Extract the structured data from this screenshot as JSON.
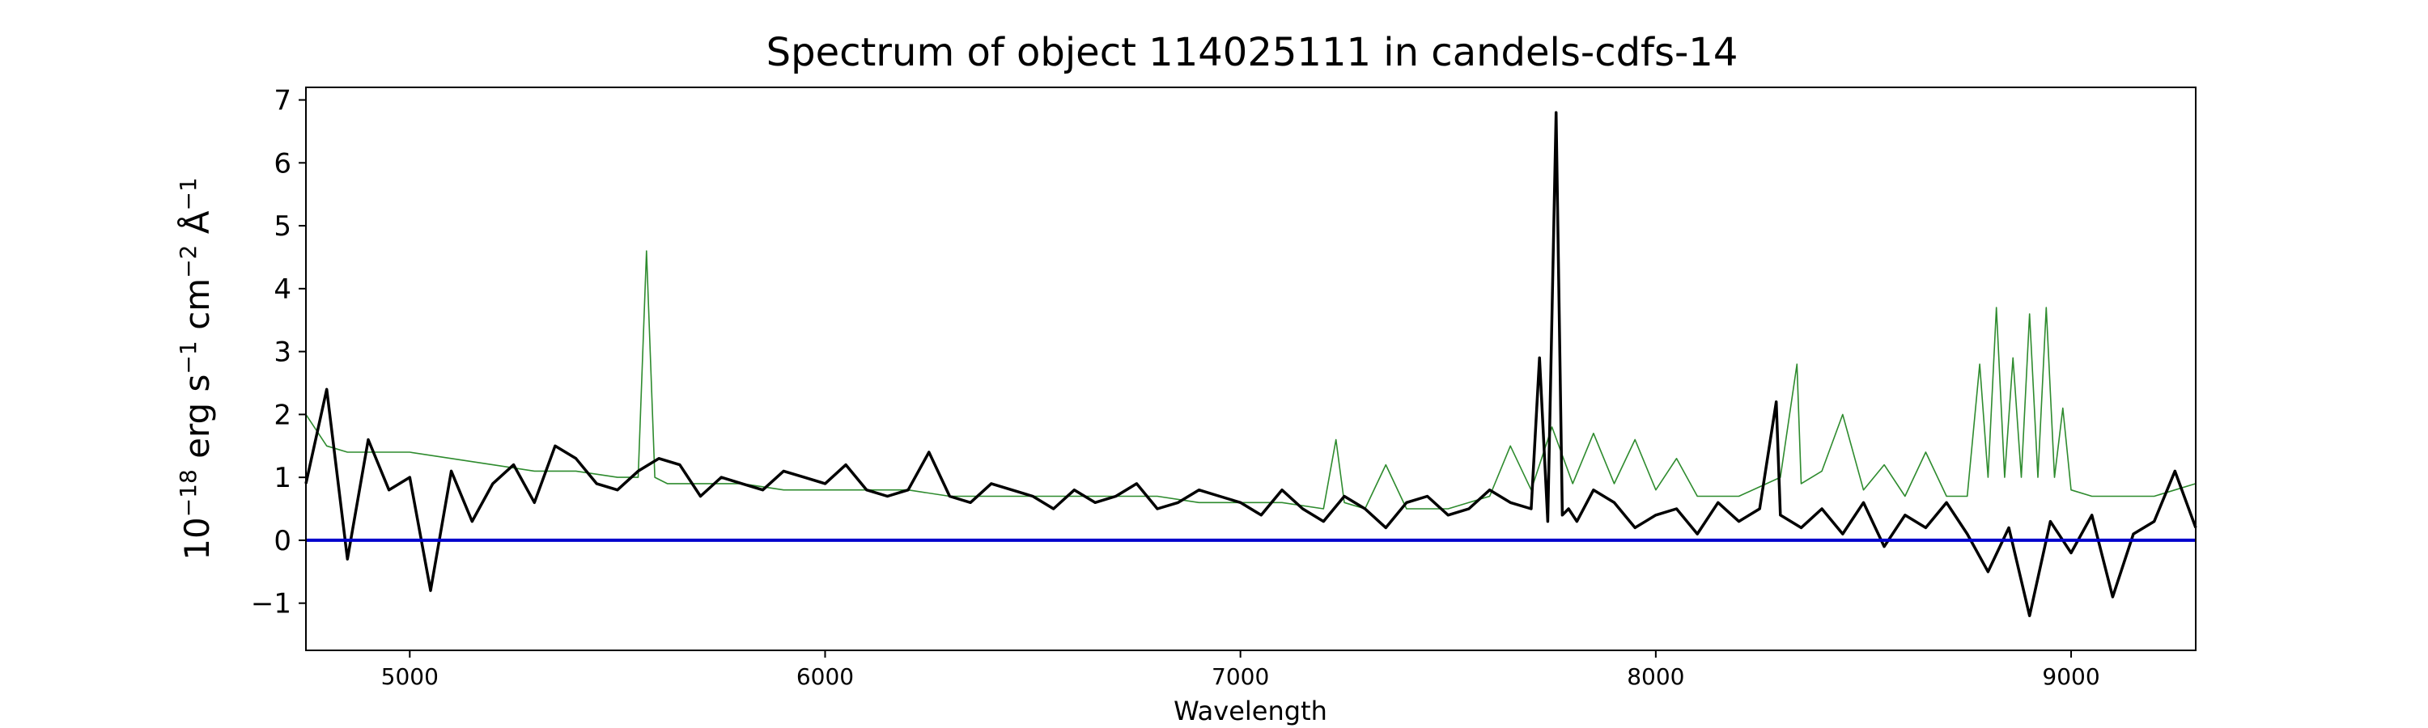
{
  "chart_data": {
    "type": "line",
    "title": "Spectrum of object 114025111 in candels-cdfs-14",
    "xlabel": "Wavelength",
    "ylabel": {
      "base": "10",
      "exp": "−18",
      "unit_erg": " erg s",
      "exp_s": "−1",
      "unit_cm": " cm",
      "exp_cm": "−2",
      "unit_ang": " Å",
      "exp_ang": "−1"
    },
    "xlim": [
      4750,
      9300
    ],
    "ylim": [
      -1.75,
      7.2
    ],
    "xticks": [
      5000,
      6000,
      7000,
      8000,
      9000
    ],
    "xtick_labels": [
      "5000",
      "6000",
      "7000",
      "8000",
      "9000"
    ],
    "yticks": [
      -1,
      0,
      1,
      2,
      3,
      4,
      5,
      6,
      7
    ],
    "ytick_labels": [
      "−1",
      "0",
      "1",
      "2",
      "3",
      "4",
      "5",
      "6",
      "7"
    ],
    "grid": false,
    "series": [
      {
        "role": "flux",
        "color": "#000000",
        "x": [
          4750,
          4800,
          4850,
          4900,
          4950,
          5000,
          5050,
          5100,
          5150,
          5200,
          5250,
          5300,
          5350,
          5400,
          5450,
          5500,
          5550,
          5600,
          5650,
          5700,
          5750,
          5800,
          5850,
          5900,
          5950,
          6000,
          6050,
          6100,
          6150,
          6200,
          6250,
          6300,
          6350,
          6400,
          6450,
          6500,
          6550,
          6600,
          6650,
          6700,
          6750,
          6800,
          6850,
          6900,
          6950,
          7000,
          7050,
          7100,
          7150,
          7200,
          7250,
          7300,
          7350,
          7400,
          7450,
          7500,
          7550,
          7600,
          7650,
          7700,
          7720,
          7740,
          7760,
          7775,
          7790,
          7810,
          7850,
          7900,
          7950,
          8000,
          8050,
          8100,
          8150,
          8200,
          8250,
          8290,
          8300,
          8350,
          8400,
          8450,
          8500,
          8550,
          8600,
          8650,
          8700,
          8750,
          8800,
          8850,
          8900,
          8950,
          9000,
          9050,
          9100,
          9150,
          9200,
          9250,
          9300
        ],
        "y": [
          0.9,
          2.4,
          -0.3,
          1.6,
          0.8,
          1.0,
          -0.8,
          1.1,
          0.3,
          0.9,
          1.2,
          0.6,
          1.5,
          1.3,
          0.9,
          0.8,
          1.1,
          1.3,
          1.2,
          0.7,
          1.0,
          0.9,
          0.8,
          1.1,
          1.0,
          0.9,
          1.2,
          0.8,
          0.7,
          0.8,
          1.4,
          0.7,
          0.6,
          0.9,
          0.8,
          0.7,
          0.5,
          0.8,
          0.6,
          0.7,
          0.9,
          0.5,
          0.6,
          0.8,
          0.7,
          0.6,
          0.4,
          0.8,
          0.5,
          0.3,
          0.7,
          0.5,
          0.2,
          0.6,
          0.7,
          0.4,
          0.5,
          0.8,
          0.6,
          0.5,
          2.9,
          0.3,
          6.8,
          0.4,
          0.5,
          0.3,
          0.8,
          0.6,
          0.2,
          0.4,
          0.5,
          0.1,
          0.6,
          0.3,
          0.5,
          2.2,
          0.4,
          0.2,
          0.5,
          0.1,
          0.6,
          -0.1,
          0.4,
          0.2,
          0.6,
          0.1,
          -0.5,
          0.2,
          -1.2,
          0.3,
          -0.2,
          0.4,
          -0.9,
          0.1,
          0.3,
          1.1,
          0.2
        ]
      },
      {
        "role": "error",
        "color": "#2e8b2e",
        "x": [
          4750,
          4800,
          4850,
          4900,
          5000,
          5100,
          5200,
          5300,
          5400,
          5500,
          5550,
          5570,
          5590,
          5620,
          5700,
          5800,
          5900,
          6000,
          6100,
          6200,
          6300,
          6400,
          6500,
          6600,
          6700,
          6800,
          6900,
          7000,
          7100,
          7200,
          7230,
          7250,
          7300,
          7350,
          7400,
          7500,
          7600,
          7650,
          7700,
          7750,
          7800,
          7850,
          7900,
          7950,
          8000,
          8050,
          8100,
          8200,
          8300,
          8340,
          8350,
          8400,
          8450,
          8500,
          8550,
          8600,
          8650,
          8700,
          8750,
          8780,
          8800,
          8820,
          8840,
          8860,
          8880,
          8900,
          8920,
          8940,
          8960,
          8980,
          9000,
          9050,
          9100,
          9150,
          9200,
          9250,
          9300
        ],
        "y": [
          2.0,
          1.5,
          1.4,
          1.4,
          1.4,
          1.3,
          1.2,
          1.1,
          1.1,
          1.0,
          1.0,
          4.6,
          1.0,
          0.9,
          0.9,
          0.9,
          0.8,
          0.8,
          0.8,
          0.8,
          0.7,
          0.7,
          0.7,
          0.7,
          0.7,
          0.7,
          0.6,
          0.6,
          0.6,
          0.5,
          1.6,
          0.6,
          0.5,
          1.2,
          0.5,
          0.5,
          0.7,
          1.5,
          0.8,
          1.8,
          0.9,
          1.7,
          0.9,
          1.6,
          0.8,
          1.3,
          0.7,
          0.7,
          1.0,
          2.8,
          0.9,
          1.1,
          2.0,
          0.8,
          1.2,
          0.7,
          1.4,
          0.7,
          0.7,
          2.8,
          1.0,
          3.7,
          1.0,
          2.9,
          1.0,
          3.6,
          1.0,
          3.7,
          1.0,
          2.1,
          0.8,
          0.7,
          0.7,
          0.7,
          0.7,
          0.8,
          0.9
        ]
      },
      {
        "role": "zero",
        "color": "#0000cc",
        "x": [
          4750,
          9300
        ],
        "y": [
          0,
          0
        ]
      }
    ]
  }
}
